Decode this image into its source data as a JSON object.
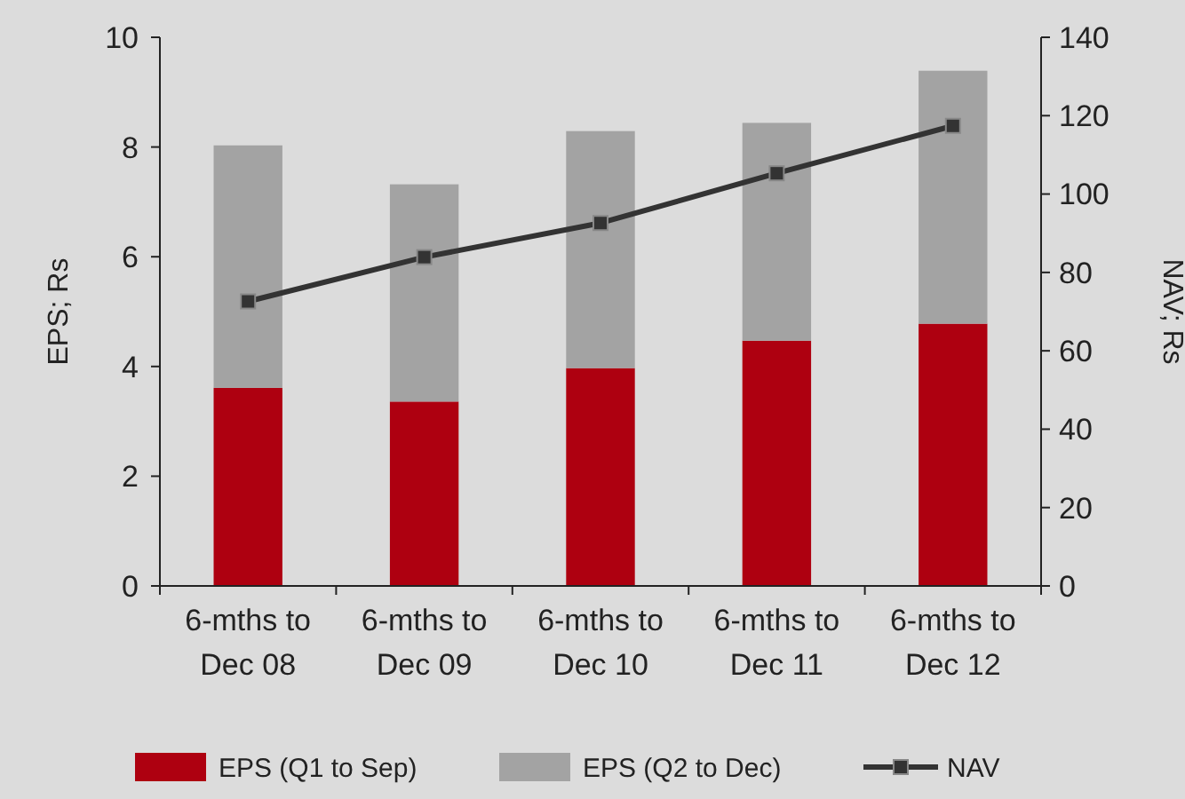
{
  "chart_data": {
    "type": "bar",
    "stacked": true,
    "categories": [
      "6-mths to Dec 08",
      "6-mths to Dec 09",
      "6-mths to Dec 10",
      "6-mths to Dec 11",
      "6-mths to Dec 12"
    ],
    "series": [
      {
        "name": "EPS (Q1 to Sep)",
        "color": "#ae0010",
        "values": [
          3.61,
          3.36,
          3.97,
          4.47,
          4.78
        ]
      },
      {
        "name": "EPS (Q2 to Dec)",
        "color": "#a3a3a3",
        "values": [
          4.42,
          3.96,
          4.32,
          3.97,
          4.61
        ]
      },
      {
        "name": "NAV",
        "type": "line",
        "axis": "y2",
        "color": "#333333",
        "marker": "square",
        "values": [
          72.6,
          83.9,
          92.6,
          105.3,
          117.4
        ]
      }
    ],
    "ylabel": "EPS; Rs",
    "y2label": "NAV; Rs",
    "ylim": [
      0,
      10
    ],
    "yticks": [
      0,
      2,
      4,
      6,
      8,
      10
    ],
    "y2lim": [
      0,
      140
    ],
    "y2ticks": [
      0,
      20,
      40,
      60,
      80,
      100,
      120,
      140
    ],
    "legend": "bottom",
    "grid": false
  }
}
